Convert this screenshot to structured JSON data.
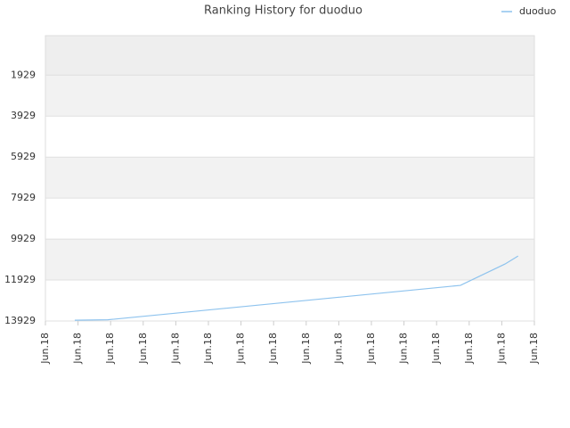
{
  "chart_data": {
    "type": "line",
    "title": "Ranking History for duoduo",
    "x": [
      0.9,
      1.91,
      12.73,
      14.1,
      14.5
    ],
    "series": [
      {
        "name": "duoduo",
        "color": "#8ec3ee",
        "values": [
          13890,
          13870,
          12190,
          11147,
          10755
        ]
      }
    ],
    "ylim": [
      13929,
      1
    ],
    "yticks": [
      1929,
      3929,
      5929,
      7929,
      9929,
      11929,
      13929
    ],
    "xlim": [
      0,
      15
    ],
    "xticks": [
      {
        "value": 0,
        "label": "Jun.18"
      },
      {
        "value": 1,
        "label": "Jun.18"
      },
      {
        "value": 2,
        "label": "Jun.18"
      },
      {
        "value": 3,
        "label": "Jun.18"
      },
      {
        "value": 4,
        "label": "Jun.18"
      },
      {
        "value": 5,
        "label": "Jun.18"
      },
      {
        "value": 6,
        "label": "Jun.18"
      },
      {
        "value": 7,
        "label": "Jun.18"
      },
      {
        "value": 8,
        "label": "Jun.18"
      },
      {
        "value": 9,
        "label": "Jun.18"
      },
      {
        "value": 10,
        "label": "Jun.18"
      },
      {
        "value": 11,
        "label": "Jun.18"
      },
      {
        "value": 12,
        "label": "Jun.18"
      },
      {
        "value": 13,
        "label": "Jun.18"
      },
      {
        "value": 14,
        "label": "Jun.18"
      },
      {
        "value": 15,
        "label": "Jun.18"
      }
    ],
    "grid": true,
    "legend": "top-right"
  }
}
